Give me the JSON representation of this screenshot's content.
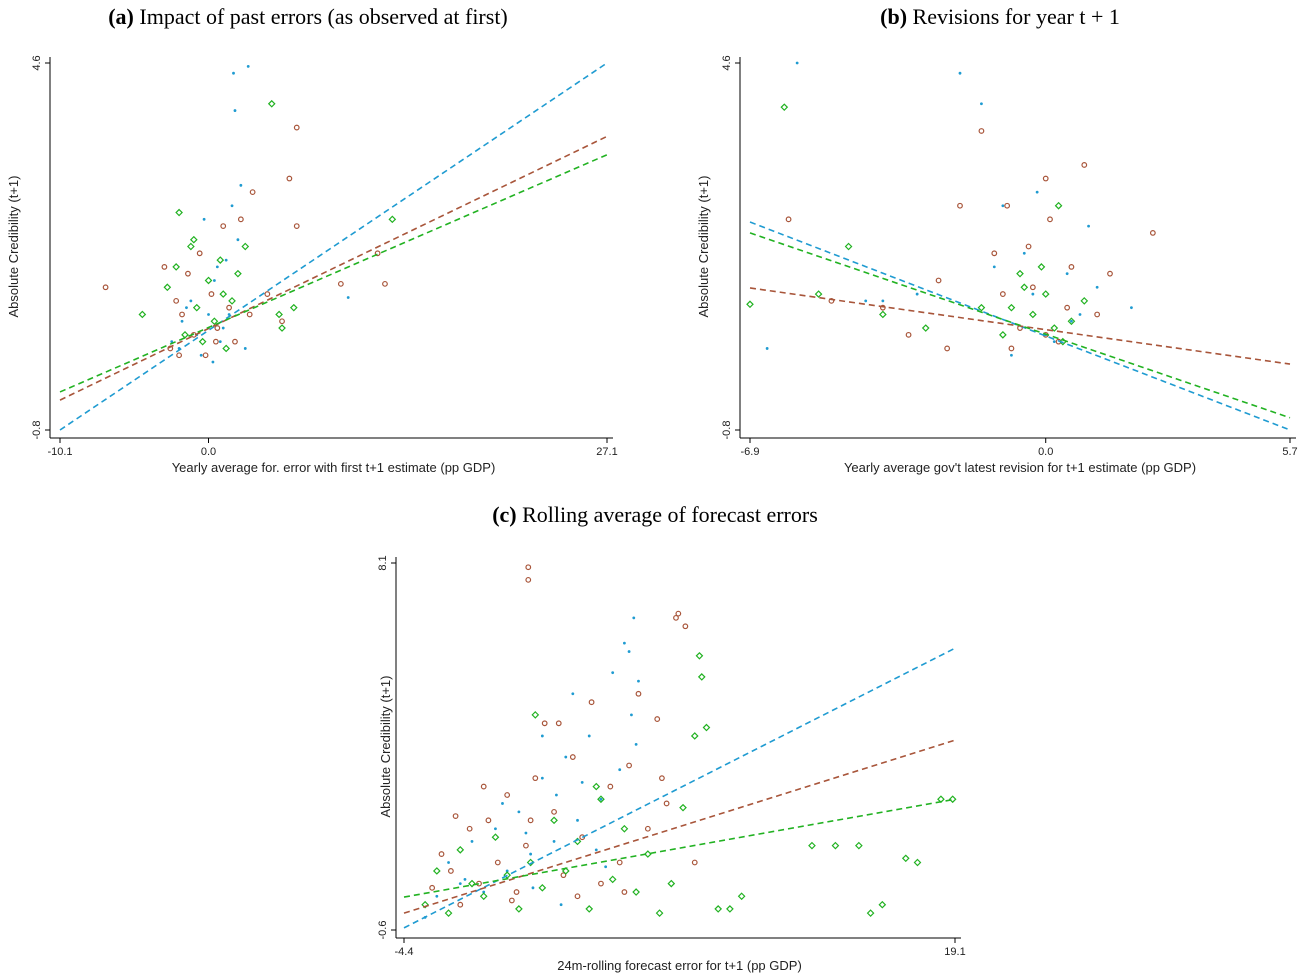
{
  "chart_data": [
    {
      "type": "scatter",
      "panel_label": "(a)",
      "title": "Impact of past errors (as observed at first)",
      "xlabel": "Yearly average for. error with first t+1 estimate (pp GDP)",
      "ylabel": "Absolute Credibility (t+1)",
      "xlim": [
        -10.1,
        27.1
      ],
      "ylim": [
        -0.8,
        4.6
      ],
      "xticks": [
        -10.1,
        {
          "value": 0,
          "label": "0.0"
        },
        27.1
      ],
      "yticks": [
        -0.8,
        4.6
      ],
      "series": [
        {
          "color": "#1f9bd1",
          "marker": "dot",
          "x": [
            -2.5,
            -1.8,
            -1.2,
            -0.8,
            -0.5,
            0,
            0.4,
            0.8,
            1.2,
            1.6,
            2.0,
            2.5,
            -1.5,
            0.3,
            1.0,
            1.7,
            1.8,
            2.7,
            9.5,
            -0.3,
            0.6,
            2.2,
            1.4,
            -2.0
          ],
          "values": [
            0.5,
            0.8,
            1.1,
            0.6,
            0.3,
            0.9,
            1.4,
            0.5,
            1.7,
            2.5,
            2.0,
            0.4,
            1.0,
            0.2,
            0.7,
            4.45,
            3.9,
            4.55,
            1.15,
            2.3,
            1.6,
            2.8,
            0.9,
            0.4
          ]
        },
        {
          "color": "#a8553a",
          "marker": "circle",
          "x": [
            -7.0,
            -3.0,
            -2.6,
            -2.2,
            -1.8,
            -1.4,
            -1.0,
            -0.6,
            -0.2,
            0.2,
            0.6,
            1.0,
            1.4,
            1.8,
            2.2,
            2.8,
            3.0,
            5.5,
            6.0,
            6.0,
            9.0,
            11.5,
            12.0,
            4.0,
            5.0,
            -2.0,
            0.5
          ],
          "values": [
            1.3,
            1.6,
            0.4,
            1.1,
            0.9,
            1.5,
            0.6,
            1.8,
            0.3,
            1.2,
            0.7,
            2.2,
            1.0,
            0.5,
            2.3,
            0.9,
            2.7,
            2.9,
            3.65,
            2.2,
            1.35,
            1.8,
            1.35,
            1.2,
            0.8,
            0.3,
            0.5
          ]
        },
        {
          "color": "#22b222",
          "marker": "diamond",
          "x": [
            -4.5,
            -2.8,
            -2.0,
            -1.6,
            -1.2,
            -0.8,
            -0.4,
            0,
            0.4,
            0.8,
            1.2,
            1.6,
            2.0,
            2.5,
            4.3,
            4.8,
            5.8,
            5.0,
            12.5,
            -1.0,
            1.0,
            -2.2
          ],
          "values": [
            0.9,
            1.3,
            2.4,
            0.6,
            1.9,
            1.0,
            0.5,
            1.4,
            0.8,
            1.7,
            0.4,
            1.1,
            1.5,
            1.9,
            4.0,
            0.9,
            1.0,
            0.7,
            2.3,
            2.0,
            1.2,
            1.6
          ]
        }
      ],
      "fits": [
        {
          "color": "#1f9bd1",
          "x": [
            -10.1,
            27.1
          ],
          "values": [
            -0.8,
            4.6
          ]
        },
        {
          "color": "#a8553a",
          "x": [
            -10.1,
            27.1
          ],
          "values": [
            -0.36,
            3.52
          ]
        },
        {
          "color": "#22b222",
          "x": [
            -10.1,
            27.1
          ],
          "values": [
            -0.24,
            3.25
          ]
        }
      ]
    },
    {
      "type": "scatter",
      "panel_label": "(b)",
      "title": "Revisions for year t + 1",
      "xlabel": "Yearly average gov't latest revision for t+1 estimate (pp GDP)",
      "ylabel": "Absolute Credibility (t+1)",
      "xlim": [
        -6.9,
        5.7
      ],
      "ylim": [
        -0.8,
        4.6
      ],
      "xticks": [
        -6.9,
        {
          "value": 0,
          "label": "0.0"
        },
        5.7
      ],
      "yticks": [
        -0.8,
        4.6
      ],
      "series": [
        {
          "color": "#1f9bd1",
          "marker": "dot",
          "x": [
            -6.5,
            -5.8,
            -2.0,
            -1.5,
            -3.0,
            -4.2,
            -1.0,
            -0.5,
            0.2,
            0.5,
            0.8,
            -0.2,
            -0.8,
            1.2,
            2.0,
            0.0,
            -0.3,
            0.6,
            1.0,
            -1.2,
            -3.8
          ],
          "values": [
            0.4,
            4.6,
            4.45,
            4.0,
            1.2,
            1.1,
            2.5,
            1.8,
            0.5,
            1.5,
            0.9,
            2.7,
            0.3,
            1.3,
            1.0,
            0.6,
            1.2,
            0.8,
            2.2,
            1.6,
            1.1
          ]
        },
        {
          "color": "#a8553a",
          "marker": "circle",
          "x": [
            -6.0,
            -5.0,
            -3.8,
            -3.2,
            -2.5,
            -2.0,
            -1.5,
            -1.2,
            -0.9,
            -0.6,
            -0.3,
            0,
            0.3,
            0.6,
            0.9,
            1.2,
            1.5,
            2.5,
            -1.0,
            0.1,
            -0.8,
            0.5,
            -0.4,
            -2.3,
            0.0
          ],
          "values": [
            2.3,
            1.1,
            1.0,
            0.6,
            1.4,
            2.5,
            3.6,
            1.8,
            2.5,
            0.7,
            1.3,
            2.9,
            0.5,
            1.6,
            3.1,
            0.9,
            1.5,
            2.1,
            1.2,
            2.3,
            0.4,
            1.0,
            1.9,
            0.4,
            0.6
          ]
        },
        {
          "color": "#22b222",
          "marker": "diamond",
          "x": [
            -6.9,
            -6.1,
            -5.3,
            -4.6,
            -3.8,
            -2.8,
            -1.5,
            -1.0,
            -0.6,
            -0.3,
            0,
            0.3,
            0.6,
            0.9,
            0.4,
            -0.1,
            -0.5,
            0.2,
            -0.8
          ],
          "values": [
            1.05,
            3.95,
            1.2,
            1.9,
            0.9,
            0.7,
            1.0,
            0.6,
            1.5,
            0.9,
            1.2,
            2.5,
            0.8,
            1.1,
            0.5,
            1.6,
            1.3,
            0.7,
            1.0
          ]
        }
      ],
      "fits": [
        {
          "color": "#1f9bd1",
          "x": [
            -6.9,
            5.7
          ],
          "values": [
            2.26,
            -0.8
          ]
        },
        {
          "color": "#a8553a",
          "x": [
            -6.9,
            5.7
          ],
          "values": [
            1.29,
            0.17
          ]
        },
        {
          "color": "#22b222",
          "x": [
            -6.9,
            5.7
          ],
          "values": [
            2.1,
            -0.62
          ]
        }
      ]
    },
    {
      "type": "scatter",
      "panel_label": "(c)",
      "title": "Rolling average of forecast errors",
      "xlabel": "24m-rolling forecast error for t+1 (pp GDP)",
      "ylabel": "Absolute Credibility (t+1)",
      "xlim": [
        -4.4,
        19.1
      ],
      "ylim": [
        -0.6,
        8.1
      ],
      "xticks": [
        -4.4,
        19.1
      ],
      "yticks": [
        -0.6,
        8.1
      ],
      "series": [
        {
          "color": "#1f9bd1",
          "marker": "dot",
          "x": [
            -3.0,
            -2.5,
            -2.0,
            -1.5,
            -1.0,
            -0.5,
            0,
            0.5,
            1.0,
            1.5,
            2.0,
            2.5,
            3.0,
            3.5,
            4.0,
            4.5,
            5.0,
            5.2,
            5.4,
            5.6,
            5.3,
            5.5,
            3.2,
            2.1,
            1.5,
            2.8,
            4.8,
            -3.5,
            -1.8,
            0.8,
            3.8,
            2.3,
            1.1,
            -0.2,
            4.2
          ],
          "values": [
            0.2,
            1.0,
            0.5,
            1.5,
            0.3,
            1.8,
            0.8,
            2.2,
            1.2,
            3.0,
            1.5,
            3.5,
            2.0,
            4.0,
            2.5,
            5.5,
            6.2,
            6.0,
            6.8,
            5.3,
            4.5,
            3.8,
            2.9,
            2.6,
            4.0,
            5.0,
            3.2,
            -0.3,
            0.6,
            1.7,
            1.3,
            0.0,
            0.4,
            2.4,
            0.9
          ]
        },
        {
          "color": "#a8553a",
          "marker": "circle",
          "x": [
            -3.2,
            -2.8,
            -2.4,
            -2.0,
            -1.6,
            -1.2,
            -0.8,
            -0.4,
            0,
            0.4,
            0.8,
            0.9,
            0.9,
            1.2,
            1.6,
            2.0,
            2.4,
            2.8,
            3.2,
            3.6,
            4.0,
            4.4,
            4.8,
            5.2,
            5.6,
            6.0,
            6.4,
            6.8,
            7.2,
            7.3,
            7.6,
            8.0,
            -1.0,
            1.0,
            2.2,
            3.0,
            5.0,
            6.6,
            0.2,
            -2.2
          ],
          "values": [
            0.4,
            1.2,
            0.8,
            0.0,
            1.8,
            0.5,
            2.0,
            1.0,
            2.6,
            0.3,
            1.4,
            8.0,
            7.7,
            3.0,
            4.3,
            2.2,
            0.7,
            3.5,
            1.6,
            4.8,
            0.5,
            2.8,
            1.0,
            3.3,
            5.0,
            1.8,
            4.4,
            2.4,
            6.8,
            6.9,
            6.6,
            1.0,
            2.8,
            2.0,
            4.3,
            0.2,
            0.3,
            3.0,
            0.1,
            2.1
          ]
        },
        {
          "color": "#22b222",
          "marker": "diamond",
          "x": [
            -3.5,
            -3.0,
            -2.5,
            -2.0,
            -1.5,
            -1.0,
            -0.5,
            0,
            0.5,
            1.0,
            1.5,
            2.0,
            2.5,
            3.0,
            3.5,
            4.0,
            4.5,
            5.0,
            5.5,
            6.0,
            6.5,
            7.0,
            7.5,
            8.0,
            8.2,
            8.3,
            8.5,
            9.0,
            9.5,
            10.0,
            13.0,
            14.0,
            15.0,
            15.5,
            16.0,
            17.0,
            17.5,
            19.0,
            18.5,
            1.2,
            3.8
          ],
          "values": [
            0.0,
            0.8,
            -0.2,
            1.3,
            0.5,
            0.2,
            1.6,
            0.7,
            -0.1,
            1.0,
            0.4,
            2.0,
            0.8,
            1.5,
            -0.1,
            2.5,
            0.6,
            1.8,
            0.3,
            1.2,
            -0.2,
            0.5,
            2.3,
            4.0,
            5.9,
            5.4,
            4.2,
            -0.1,
            -0.1,
            0.2,
            1.4,
            1.4,
            1.4,
            -0.2,
            0.0,
            1.1,
            1.0,
            2.5,
            2.5,
            4.5,
            2.8
          ]
        }
      ],
      "fits": [
        {
          "color": "#1f9bd1",
          "x": [
            -4.4,
            19.1
          ],
          "values": [
            -0.55,
            6.08
          ]
        },
        {
          "color": "#a8553a",
          "x": [
            -4.4,
            19.1
          ],
          "values": [
            -0.2,
            3.9
          ]
        },
        {
          "color": "#22b222",
          "x": [
            -4.4,
            19.1
          ],
          "values": [
            0.18,
            2.5
          ]
        }
      ]
    }
  ]
}
